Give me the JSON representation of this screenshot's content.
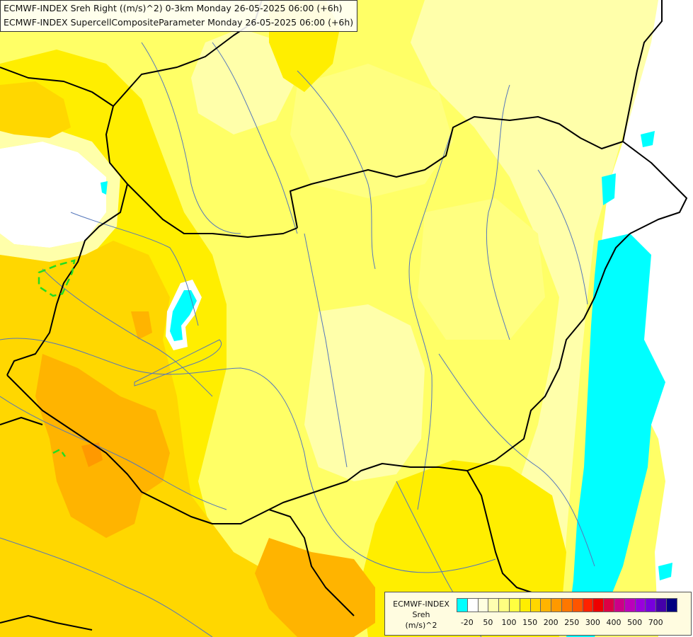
{
  "header": {
    "line1": "ECMWF-INDEX Sreh Right ((m/s)^2) 0-3km Monday 26-05-2025 06:00 (+6h)",
    "line2": "ECMWF-INDEX SupercellCompositeParameter Monday 26-05-2025 06:00 (+6h)"
  },
  "legend": {
    "title_line1": "ECMWF-INDEX",
    "title_line2": "Sreh",
    "title_line3": "(m/s)^2",
    "colors": [
      "#00ffff",
      "#ffffff",
      "#ffffe0",
      "#ffffb0",
      "#ffff80",
      "#ffff40",
      "#ffee00",
      "#ffd700",
      "#ffb400",
      "#ff9900",
      "#ff7700",
      "#ff5500",
      "#ff2200",
      "#ee0000",
      "#dd0044",
      "#cc0088",
      "#bb00bb",
      "#9900dd",
      "#7700dd",
      "#4400aa",
      "#000080"
    ],
    "ticks": [
      "-20",
      "50",
      "100",
      "150",
      "200",
      "250",
      "300",
      "400",
      "500",
      "700"
    ]
  },
  "map_colors": {
    "base": "#ffff66",
    "pale": "#ffffaa",
    "light": "#ffff80",
    "yellow": "#ffee00",
    "gold": "#ffd700",
    "orange": "#ffb400",
    "deep_orange": "#ff9900",
    "white": "#ffffff",
    "cyan": "#00ffff",
    "border": "#000000",
    "river": "#5577bb",
    "scp_contour": "#22dd22"
  }
}
